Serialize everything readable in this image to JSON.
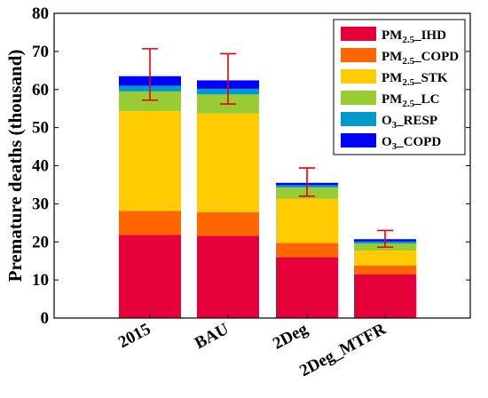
{
  "chart_data": {
    "type": "bar",
    "stacked": true,
    "categories": [
      "2015",
      "BAU",
      "2Deg",
      "2Deg_MTFR"
    ],
    "ylabel": "Premature deaths (thousand)",
    "xlabel": "",
    "ylim": [
      0,
      80
    ],
    "yticks": [
      0,
      10,
      20,
      30,
      40,
      50,
      60,
      70,
      80
    ],
    "grid": false,
    "legend_position": "top-right",
    "series": [
      {
        "name": "PM2.5_IHD",
        "label_main": "PM",
        "label_sub": "2.5",
        "label_rest": "_IHD",
        "color": "#e60039",
        "values": [
          21.8,
          21.6,
          16.0,
          11.5
        ]
      },
      {
        "name": "PM2.5_COPD",
        "label_main": "PM",
        "label_sub": "2.5",
        "label_rest": "_COPD",
        "color": "#ff6600",
        "values": [
          6.3,
          6.2,
          3.7,
          2.3
        ]
      },
      {
        "name": "PM2.5_STK",
        "label_main": "PM",
        "label_sub": "2.5",
        "label_rest": "_STK",
        "color": "#ffcc00",
        "values": [
          26.2,
          25.9,
          11.6,
          3.9
        ]
      },
      {
        "name": "PM2.5_LC",
        "label_main": "PM",
        "label_sub": "2.5",
        "label_rest": "_LC",
        "color": "#99cc33",
        "values": [
          5.2,
          5.0,
          3.0,
          1.9
        ]
      },
      {
        "name": "O3_RESP",
        "label_main": "O",
        "label_sub": "3",
        "label_rest": "_RESP",
        "color": "#0099cc",
        "values": [
          1.5,
          1.5,
          0.6,
          0.5
        ]
      },
      {
        "name": "O3_COPD",
        "label_main": "O",
        "label_sub": "3",
        "label_rest": "_COPD",
        "color": "#0000ff",
        "values": [
          2.5,
          2.2,
          0.6,
          0.6
        ]
      }
    ],
    "error_bars": {
      "color": "#e60000",
      "center": [
        63.5,
        62.4,
        35.5,
        20.7
      ],
      "lower": [
        57.2,
        56.2,
        32.0,
        18.6
      ],
      "upper": [
        70.7,
        69.4,
        39.4,
        23.0
      ]
    }
  }
}
